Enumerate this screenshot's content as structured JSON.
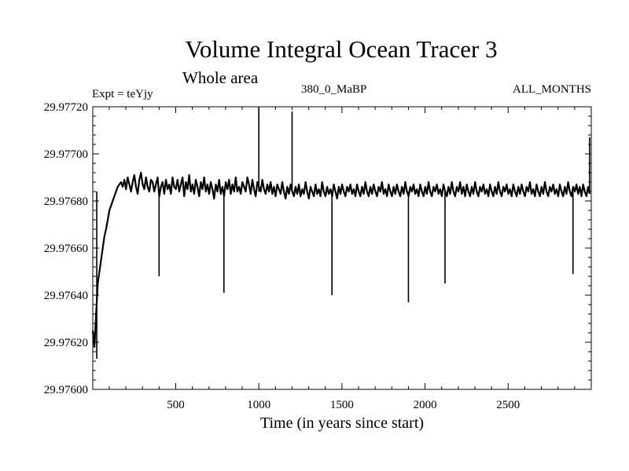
{
  "chart_data": {
    "type": "line",
    "title": "Volume Integral Ocean Tracer 3",
    "subtitle": "Whole area",
    "expt_label": "Expt = teYjy",
    "run_label": "380_0_MaBP",
    "months_label": "ALL_MONTHS",
    "xlabel": "Time (in years since start)",
    "ylabel": "",
    "xlim": [
      1,
      3000
    ],
    "ylim": [
      29.976,
      29.9772
    ],
    "x_ticks": [
      500,
      1000,
      1500,
      2000,
      2500
    ],
    "x_tick_labels": [
      "500",
      "1000",
      "1500",
      "2000",
      "2500"
    ],
    "y_ticks": [
      29.976,
      29.9762,
      29.9764,
      29.9766,
      29.9768,
      29.977,
      29.9772
    ],
    "y_tick_labels": [
      "29.97600",
      "29.97620",
      "29.97640",
      "29.97660",
      "29.97680",
      "29.97700",
      "29.97720"
    ],
    "grid": false,
    "series": [
      {
        "color": "#000000",
        "x_start": 1,
        "x_step": 10,
        "values": [
          29.97625,
          29.97618,
          29.97632,
          29.97645,
          29.9765,
          29.97655,
          29.9766,
          29.97665,
          29.97668,
          29.97672,
          29.97676,
          29.97678,
          29.9768,
          29.97682,
          29.97684,
          29.97686,
          29.97687,
          29.97688,
          29.97686,
          29.97689,
          29.97685,
          29.9769,
          29.97687,
          29.97684,
          29.97688,
          29.97691,
          29.97686,
          29.97683,
          29.97689,
          29.97692,
          29.97687,
          29.97685,
          29.9769,
          29.97686,
          29.97684,
          29.97689,
          29.97688,
          29.97684,
          29.97687,
          29.9769,
          29.97682,
          29.97686,
          29.97688,
          29.97683,
          29.97689,
          29.97685,
          29.97687,
          29.97683,
          29.9769,
          29.97686,
          29.97685,
          29.97689,
          29.97684,
          29.97687,
          29.9769,
          29.97682,
          29.97688,
          29.97685,
          29.97691,
          29.97684,
          29.97687,
          29.97683,
          29.97689,
          29.97686,
          29.97682,
          29.97688,
          29.97685,
          29.9769,
          29.97684,
          29.97687,
          29.97683,
          29.97688,
          29.97685,
          29.97681,
          29.97687,
          29.97684,
          29.97689,
          29.97683,
          29.97686,
          29.97682,
          29.97688,
          29.97685,
          29.97689,
          29.97683,
          29.97687,
          29.97684,
          29.9769,
          29.97684,
          29.97686,
          29.97683,
          29.97688,
          29.97686,
          29.97684,
          29.9769,
          29.97687,
          29.97683,
          29.97689,
          29.97685,
          29.97682,
          29.97688,
          29.97686,
          29.97684,
          29.97689,
          29.97685,
          29.97683,
          29.97687,
          29.97684,
          29.97688,
          29.97683,
          29.97686,
          29.97682,
          29.97687,
          29.97685,
          29.97683,
          29.97688,
          29.97684,
          29.97681,
          29.97686,
          29.97683,
          29.97687,
          29.97684,
          29.97682,
          29.97686,
          29.97683,
          29.97687,
          29.97682,
          29.97685,
          29.97683,
          29.97688,
          29.97684,
          29.97681,
          29.97686,
          29.97684,
          29.97682,
          29.97687,
          29.97683,
          29.97685,
          29.97682,
          29.97688,
          29.97684,
          29.97682,
          29.97686,
          29.97683,
          29.97685,
          29.97682,
          29.97687,
          29.97684,
          29.97681,
          29.97686,
          29.97683,
          29.97687,
          29.97684,
          29.97682,
          29.97686,
          29.97684,
          29.97687,
          29.97683,
          29.97685,
          29.97682,
          29.97687,
          29.97684,
          29.97682,
          29.97686,
          29.97683,
          29.97688,
          29.97684,
          29.97682,
          29.97686,
          29.97683,
          29.97687,
          29.97684,
          29.97682,
          29.97686,
          29.97684,
          29.97688,
          29.97683,
          29.97685,
          29.97682,
          29.97687,
          29.97684,
          29.97682,
          29.97686,
          29.97683,
          29.97687,
          29.97684,
          29.97682,
          29.97686,
          29.97683,
          29.97688,
          29.97684,
          29.97682,
          29.97686,
          29.97684,
          29.97687,
          29.97683,
          29.97685,
          29.97682,
          29.97687,
          29.97684,
          29.97682,
          29.97686,
          29.97683,
          29.97688,
          29.97684,
          29.97682,
          29.97686,
          29.97684,
          29.97687,
          29.97683,
          29.97685,
          29.97682,
          29.97687,
          29.97684,
          29.97682,
          29.97686,
          29.97683,
          29.97688,
          29.97684,
          29.97682,
          29.97686,
          29.97684,
          29.97688,
          29.97683,
          29.97686,
          29.97682,
          29.97687,
          29.97684,
          29.97682,
          29.97686,
          29.97683,
          29.97688,
          29.97684,
          29.97682,
          29.97686,
          29.97684,
          29.97687,
          29.97683,
          29.97685,
          29.97682,
          29.97687,
          29.97684,
          29.97682,
          29.97686,
          29.97683,
          29.97688,
          29.97684,
          29.97682,
          29.97686,
          29.97684,
          29.97687,
          29.97683,
          29.97685,
          29.97682,
          29.97687,
          29.97684,
          29.97682,
          29.97686,
          29.97683,
          29.97687,
          29.97684,
          29.97682,
          29.97686,
          29.97684,
          29.97688,
          29.97683,
          29.97685,
          29.97682,
          29.97687,
          29.97684,
          29.97682,
          29.97686,
          29.97683,
          29.97688,
          29.97684,
          29.97682,
          29.97686,
          29.97684,
          29.97687,
          29.97683,
          29.97685,
          29.97682,
          29.97687,
          29.97684,
          29.97682,
          29.97686,
          29.97683,
          29.97688,
          29.97684,
          29.97682,
          29.97686,
          29.97684,
          29.97687,
          29.97683,
          29.97686,
          29.97682,
          29.97687,
          29.97684,
          29.97682,
          29.97686,
          29.97683
        ]
      }
    ],
    "spikes": [
      {
        "x": 25,
        "y": 29.97613
      },
      {
        "x": 400,
        "y": 29.97648
      },
      {
        "x": 790,
        "y": 29.97641
      },
      {
        "x": 1000,
        "y": 29.9772
      },
      {
        "x": 1200,
        "y": 29.97718
      },
      {
        "x": 1440,
        "y": 29.9764
      },
      {
        "x": 1900,
        "y": 29.97637
      },
      {
        "x": 2120,
        "y": 29.97645
      },
      {
        "x": 2890,
        "y": 29.97649
      },
      {
        "x": 2990,
        "y": 29.97707
      }
    ]
  }
}
